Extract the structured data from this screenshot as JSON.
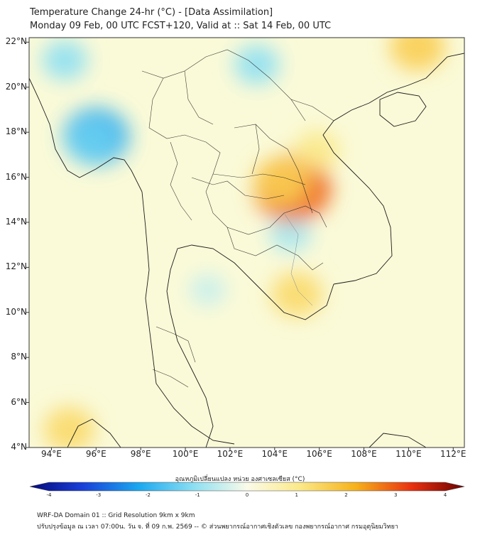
{
  "header": {
    "title": "Temperature Change 24-hr (°C) - [Data Assimilation]",
    "subtitle": "Monday 09 Feb, 00 UTC FCST+120, Valid at :: Sat 14 Feb, 00 UTC"
  },
  "map": {
    "lat_labels": [
      "22°N",
      "20°N",
      "18°N",
      "16°N",
      "14°N",
      "12°N",
      "10°N",
      "8°N",
      "6°N",
      "4°N"
    ],
    "lon_labels": [
      "94°E",
      "96°E",
      "98°E",
      "100°E",
      "102°E",
      "104°E",
      "106°E",
      "108°E",
      "110°E",
      "112°E"
    ],
    "lat_range": [
      4,
      22.2
    ],
    "lon_range": [
      93,
      112.5
    ],
    "anomalies": [
      {
        "region": "cool-core",
        "lon": 96,
        "lat": 17.8,
        "value": -2.0
      },
      {
        "region": "cool-outer",
        "lon": 95.8,
        "lat": 17.6,
        "value": -1.3
      },
      {
        "region": "cool-north",
        "lon": 94.6,
        "lat": 21.2,
        "value": -1.0
      },
      {
        "region": "cool-north-2",
        "lon": 103.2,
        "lat": 21.0,
        "value": -1.0
      },
      {
        "region": "cool-tonle",
        "lon": 104.7,
        "lat": 13.5,
        "value": -0.8
      },
      {
        "region": "cool-gulf",
        "lon": 101.0,
        "lat": 11.0,
        "value": -0.5
      },
      {
        "region": "warm-core",
        "lon": 104.8,
        "lat": 15.5,
        "value": 2.6
      },
      {
        "region": "warm-isan",
        "lon": 104.3,
        "lat": 15.8,
        "value": 1.5
      },
      {
        "region": "warm-cambodia",
        "lon": 105.0,
        "lat": 10.8,
        "value": 1.3
      },
      {
        "region": "warm-south",
        "lon": 94.8,
        "lat": 4.8,
        "value": 1.3
      },
      {
        "region": "warm-hainan",
        "lon": 110.4,
        "lat": 21.8,
        "value": 1.5
      },
      {
        "region": "warm-laos",
        "lon": 105.9,
        "lat": 17.2,
        "value": 1.0
      }
    ]
  },
  "colorbar": {
    "label": "อุณหภูมิเปลี่ยนแปลง หน่วย องศาเซลเซียส (°C)",
    "ticks": [
      "-4",
      "-3",
      "-2",
      "-1",
      "0",
      "1",
      "2",
      "3",
      "4"
    ],
    "range": [
      -4,
      4
    ]
  },
  "footer": {
    "line1": "WRF-DA Domain 01 :: Grid Resolution 9km x 9km",
    "line2": "ปรับปรุงข้อมูล ณ เวลา 07:00น. วัน จ. ที่ 09 ก.พ. 2569 -- © ส่วนพยากรณ์อากาศเชิงตัวเลข กองพยากรณ์อากาศ กรมอุตุนิยมวิทยา"
  },
  "colors": {
    "land_background": "#f9f9df",
    "border": "#1b1b1b",
    "frame": "#333333"
  }
}
